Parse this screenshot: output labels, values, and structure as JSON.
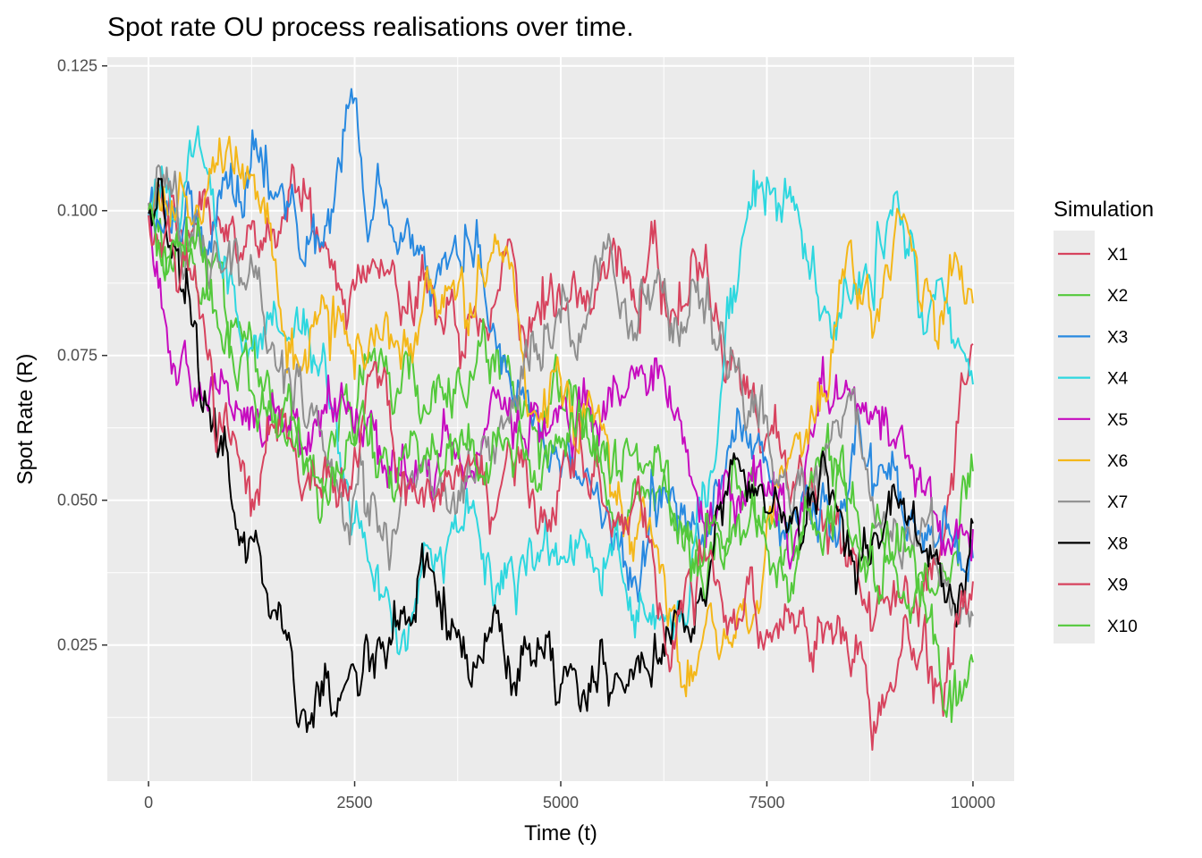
{
  "chart_data": {
    "type": "line",
    "title": "Spot rate OU process realisations over time.",
    "xlabel": "Time (t)",
    "ylabel": "Spot Rate (R)",
    "xlim": [
      -500,
      10500
    ],
    "ylim": [
      0.0015,
      0.1265
    ],
    "x_ticks": [
      0,
      2500,
      5000,
      7500,
      10000
    ],
    "x_tick_labels": [
      "0",
      "2500",
      "5000",
      "7500",
      "10000"
    ],
    "y_ticks": [
      0.025,
      0.05,
      0.075,
      0.1,
      0.125
    ],
    "y_tick_labels": [
      "0.025",
      "0.050",
      "0.075",
      "0.100",
      "0.125"
    ],
    "grid": true,
    "legend": {
      "title": "Simulation",
      "position": "right"
    },
    "x": [
      0,
      500,
      1000,
      1500,
      2000,
      2500,
      3000,
      3500,
      4000,
      4500,
      5000,
      5500,
      6000,
      6500,
      7000,
      7500,
      8000,
      8500,
      9000,
      9500,
      10000
    ],
    "series": [
      {
        "name": "X1",
        "color": "#D7435E",
        "values": [
          0.1,
          0.095,
          0.1,
          0.098,
          0.095,
          0.088,
          0.087,
          0.081,
          0.079,
          0.078,
          0.085,
          0.09,
          0.088,
          0.084,
          0.07,
          0.06,
          0.05,
          0.04,
          0.03,
          0.036,
          0.077
        ]
      },
      {
        "name": "X2",
        "color": "#53C93B",
        "values": [
          0.1,
          0.092,
          0.08,
          0.068,
          0.058,
          0.062,
          0.067,
          0.07,
          0.078,
          0.066,
          0.068,
          0.056,
          0.052,
          0.04,
          0.042,
          0.048,
          0.05,
          0.052,
          0.04,
          0.035,
          0.055
        ]
      },
      {
        "name": "X3",
        "color": "#2889E0",
        "values": [
          0.1,
          0.104,
          0.107,
          0.102,
          0.098,
          0.12,
          0.094,
          0.09,
          0.094,
          0.07,
          0.055,
          0.045,
          0.042,
          0.05,
          0.055,
          0.055,
          0.052,
          0.053,
          0.055,
          0.045,
          0.04
        ]
      },
      {
        "name": "X4",
        "color": "#2DD7DF",
        "values": [
          0.1,
          0.112,
          0.09,
          0.08,
          0.075,
          0.045,
          0.028,
          0.04,
          0.042,
          0.038,
          0.04,
          0.035,
          0.032,
          0.028,
          0.08,
          0.105,
          0.09,
          0.085,
          0.1,
          0.085,
          0.07
        ]
      },
      {
        "name": "X5",
        "color": "#C60BBF",
        "values": [
          0.1,
          0.07,
          0.068,
          0.066,
          0.062,
          0.062,
          0.055,
          0.055,
          0.058,
          0.064,
          0.066,
          0.064,
          0.072,
          0.062,
          0.055,
          0.052,
          0.06,
          0.07,
          0.06,
          0.05,
          0.045
        ]
      },
      {
        "name": "X6",
        "color": "#F4B719",
        "values": [
          0.1,
          0.098,
          0.11,
          0.092,
          0.08,
          0.072,
          0.078,
          0.082,
          0.09,
          0.08,
          0.07,
          0.062,
          0.05,
          0.018,
          0.025,
          0.045,
          0.06,
          0.095,
          0.09,
          0.085,
          0.084
        ]
      },
      {
        "name": "X7",
        "color": "#8F8F8F",
        "values": [
          0.1,
          0.095,
          0.09,
          0.078,
          0.065,
          0.052,
          0.045,
          0.052,
          0.056,
          0.07,
          0.085,
          0.09,
          0.085,
          0.08,
          0.075,
          0.065,
          0.05,
          0.068,
          0.045,
          0.05,
          0.03
        ]
      },
      {
        "name": "X8",
        "color": "#000000",
        "values": [
          0.1,
          0.085,
          0.05,
          0.03,
          0.01,
          0.022,
          0.028,
          0.032,
          0.022,
          0.02,
          0.018,
          0.025,
          0.022,
          0.028,
          0.052,
          0.048,
          0.05,
          0.04,
          0.048,
          0.04,
          0.046
        ]
      },
      {
        "name": "X9",
        "color": "#D7435E",
        "values": [
          0.1,
          0.09,
          0.06,
          0.062,
          0.055,
          0.058,
          0.055,
          0.05,
          0.055,
          0.058,
          0.055,
          0.05,
          0.045,
          0.035,
          0.03,
          0.028,
          0.025,
          0.022,
          0.018,
          0.02,
          0.036
        ]
      },
      {
        "name": "X10",
        "color": "#53C93B",
        "values": [
          0.1,
          0.095,
          0.075,
          0.065,
          0.055,
          0.06,
          0.05,
          0.06,
          0.055,
          0.062,
          0.06,
          0.058,
          0.054,
          0.045,
          0.04,
          0.042,
          0.048,
          0.045,
          0.04,
          0.03,
          0.022
        ]
      }
    ]
  }
}
